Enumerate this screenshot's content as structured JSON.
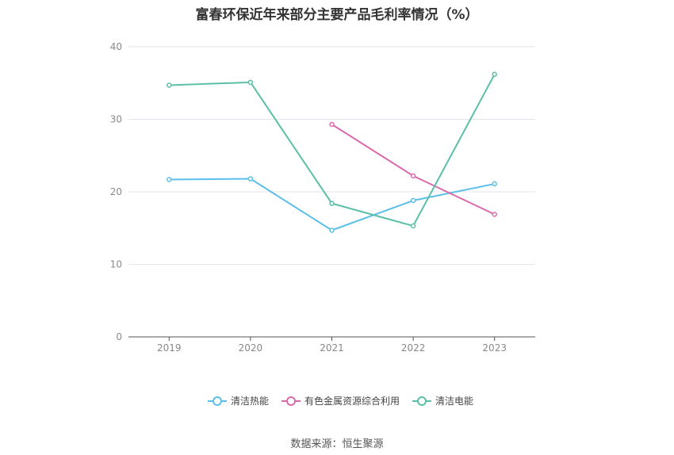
{
  "chart_data": {
    "type": "line",
    "title": "富春环保近年来部分主要产品毛利率情况（%）",
    "xlabel": "",
    "ylabel": "",
    "categories": [
      "2019",
      "2020",
      "2021",
      "2022",
      "2023"
    ],
    "ylim": [
      0,
      40
    ],
    "yticks": [
      0,
      10,
      20,
      30,
      40
    ],
    "grid": true,
    "legend_position": "bottom",
    "series": [
      {
        "name": "清洁热能",
        "color": "#5bbfea",
        "values": [
          21.7,
          21.8,
          14.7,
          18.8,
          21.1
        ]
      },
      {
        "name": "有色金属资源综合利用",
        "color": "#d96bad",
        "values": [
          null,
          null,
          29.3,
          22.2,
          16.9
        ]
      },
      {
        "name": "清洁电能",
        "color": "#5bbfa7",
        "values": [
          34.7,
          35.1,
          18.4,
          15.3,
          36.2
        ]
      }
    ]
  },
  "footer": {
    "source": "数据来源：恒生聚源"
  }
}
